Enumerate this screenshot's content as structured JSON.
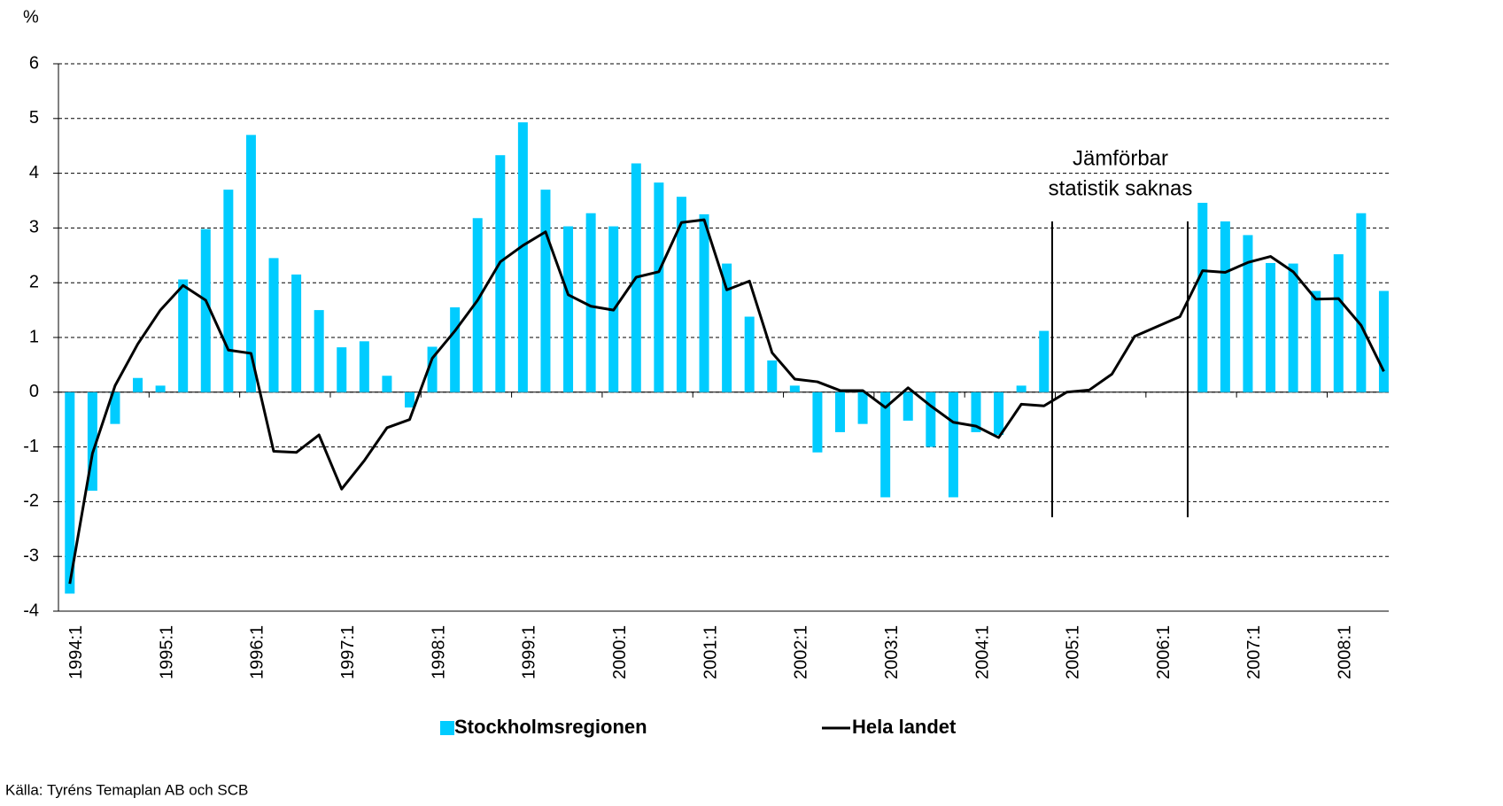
{
  "chart_data": {
    "type": "bar-line",
    "y_axis_label": "%",
    "source": "Källa: Tyréns Temaplan AB och SCB",
    "annotation": [
      "Jämförbar",
      "statistik saknas"
    ],
    "categories": [
      "1994:1",
      null,
      null,
      null,
      "1995:1",
      null,
      null,
      null,
      "1996:1",
      null,
      null,
      null,
      "1997:1",
      null,
      null,
      null,
      "1998:1",
      null,
      null,
      null,
      "1999:1",
      null,
      null,
      null,
      "2000:1",
      null,
      null,
      null,
      "2001:1",
      null,
      null,
      null,
      "2002:1",
      null,
      null,
      null,
      "2003:1",
      null,
      null,
      null,
      "2004:1",
      null,
      null,
      null,
      "2005:1",
      null,
      null,
      null,
      "2006:1",
      null,
      null,
      null,
      "2007:1",
      null,
      null,
      null,
      "2008:1",
      null,
      null
    ],
    "series": [
      {
        "name": "Stockholmsregionen",
        "type": "bar",
        "color": "#00ccff",
        "values": [
          -3.68,
          -1.8,
          -0.58,
          0.26,
          0.12,
          2.06,
          2.98,
          3.7,
          4.7,
          2.45,
          2.15,
          1.5,
          0.82,
          0.93,
          0.3,
          -0.28,
          0.83,
          1.55,
          3.18,
          4.33,
          4.93,
          3.7,
          3.03,
          3.27,
          3.03,
          4.18,
          3.83,
          3.57,
          3.25,
          2.35,
          1.38,
          0.58,
          0.12,
          -1.1,
          -0.73,
          -0.58,
          -1.92,
          -0.52,
          -1.0,
          -1.92,
          -0.73,
          -0.78,
          0.12,
          1.12,
          null,
          null,
          null,
          null,
          null,
          null,
          3.46,
          3.12,
          2.87,
          2.36,
          2.35,
          1.85,
          2.52,
          3.27,
          1.85
        ]
      },
      {
        "name": "Hela landet",
        "type": "line",
        "color": "#000000",
        "values": [
          -3.5,
          -1.12,
          0.12,
          0.88,
          1.5,
          1.95,
          1.68,
          0.77,
          0.71,
          -1.08,
          -1.1,
          -0.78,
          -1.77,
          -1.25,
          -0.65,
          -0.5,
          0.62,
          1.12,
          1.68,
          2.38,
          2.68,
          2.93,
          1.78,
          1.57,
          1.5,
          2.1,
          2.2,
          3.1,
          3.15,
          1.87,
          2.03,
          0.72,
          0.24,
          0.19,
          0.03,
          0.03,
          -0.28,
          0.08,
          -0.25,
          -0.55,
          -0.62,
          -0.83,
          -0.22,
          -0.25,
          0.0,
          0.04,
          0.33,
          1.02,
          1.2,
          1.38,
          2.22,
          2.19,
          2.37,
          2.48,
          2.2,
          1.7,
          1.71,
          1.22,
          0.38
        ]
      }
    ],
    "ylim": [
      -4,
      6
    ],
    "yticks": [
      -4,
      -3,
      -2,
      -1,
      0,
      1,
      2,
      3,
      4,
      5,
      6
    ],
    "grid": true
  }
}
